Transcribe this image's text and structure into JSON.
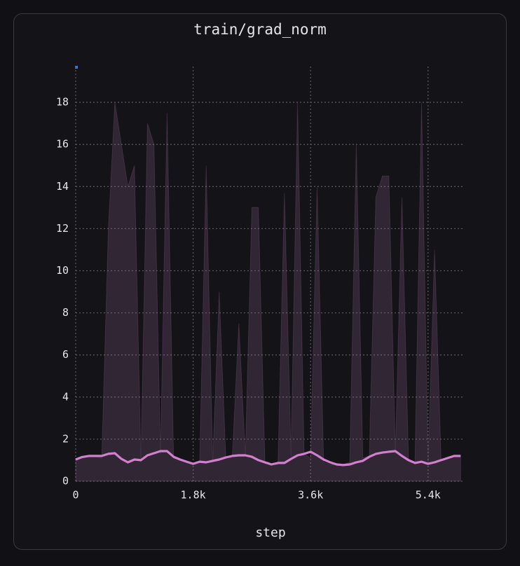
{
  "chart_data": {
    "type": "line",
    "title": "train/grad_norm",
    "x_label": "step",
    "x": [
      0,
      100,
      200,
      300,
      400,
      500,
      600,
      700,
      800,
      900,
      1000,
      1100,
      1200,
      1300,
      1400,
      1500,
      1600,
      1700,
      1800,
      1900,
      2000,
      2100,
      2200,
      2300,
      2400,
      2500,
      2600,
      2700,
      2800,
      2900,
      3000,
      3100,
      3200,
      3300,
      3400,
      3500,
      3600,
      3700,
      3800,
      3900,
      4000,
      4100,
      4200,
      4300,
      4400,
      4500,
      4600,
      4700,
      4800,
      4900,
      5000,
      5100,
      5200,
      5300,
      5400,
      5500,
      5600,
      5700,
      5800,
      5900
    ],
    "series": [
      {
        "color": "#b57fb5",
        "opacity": 0.18,
        "fill": true,
        "values": [
          1.0,
          1.1,
          1.2,
          1.2,
          1.1,
          12,
          18,
          16,
          14,
          15,
          0.9,
          17,
          16,
          1.3,
          17.5,
          1.1,
          1.0,
          0.9,
          0.8,
          0.9,
          15,
          0.9,
          9,
          1.1,
          1.2,
          7.5,
          1.2,
          13,
          13,
          0.9,
          0.8,
          0.8,
          13.7,
          1.2,
          18,
          1.3,
          1.1,
          14,
          0.9,
          0.8,
          0.8,
          0.8,
          0.9,
          16,
          1.1,
          1.2,
          13.5,
          14.5,
          14.5,
          1.3,
          13.5,
          1.0,
          0.9,
          18,
          0.9,
          11,
          1.0,
          1.1,
          1.2,
          1.2
        ]
      },
      {
        "color": "#d27fcf",
        "opacity": 1,
        "fill": false,
        "values": [
          1.03,
          1.15,
          1.2,
          1.2,
          1.2,
          1.3,
          1.33,
          1.06,
          0.9,
          1.03,
          1.0,
          1.23,
          1.33,
          1.43,
          1.43,
          1.16,
          1.03,
          0.93,
          0.83,
          0.93,
          0.9,
          0.97,
          1.03,
          1.13,
          1.2,
          1.23,
          1.23,
          1.16,
          1.0,
          0.9,
          0.8,
          0.87,
          0.87,
          1.06,
          1.23,
          1.3,
          1.4,
          1.23,
          1.03,
          0.9,
          0.8,
          0.77,
          0.8,
          0.9,
          0.97,
          1.16,
          1.3,
          1.36,
          1.4,
          1.43,
          1.2,
          1.0,
          0.87,
          0.93,
          0.83,
          0.9,
          1.0,
          1.1,
          1.2,
          1.2
        ]
      }
    ],
    "xlim": [
      0,
      5950
    ],
    "xticks": [
      0,
      {
        "value": 1800,
        "label": "1.8k"
      },
      {
        "value": 3600,
        "label": "3.6k"
      },
      {
        "value": 5400,
        "label": "5.4k"
      }
    ],
    "ylim": [
      0,
      19.7
    ],
    "yticks": [
      0,
      2,
      4,
      6,
      8,
      10,
      12,
      14,
      16,
      18
    ],
    "grid": true
  }
}
